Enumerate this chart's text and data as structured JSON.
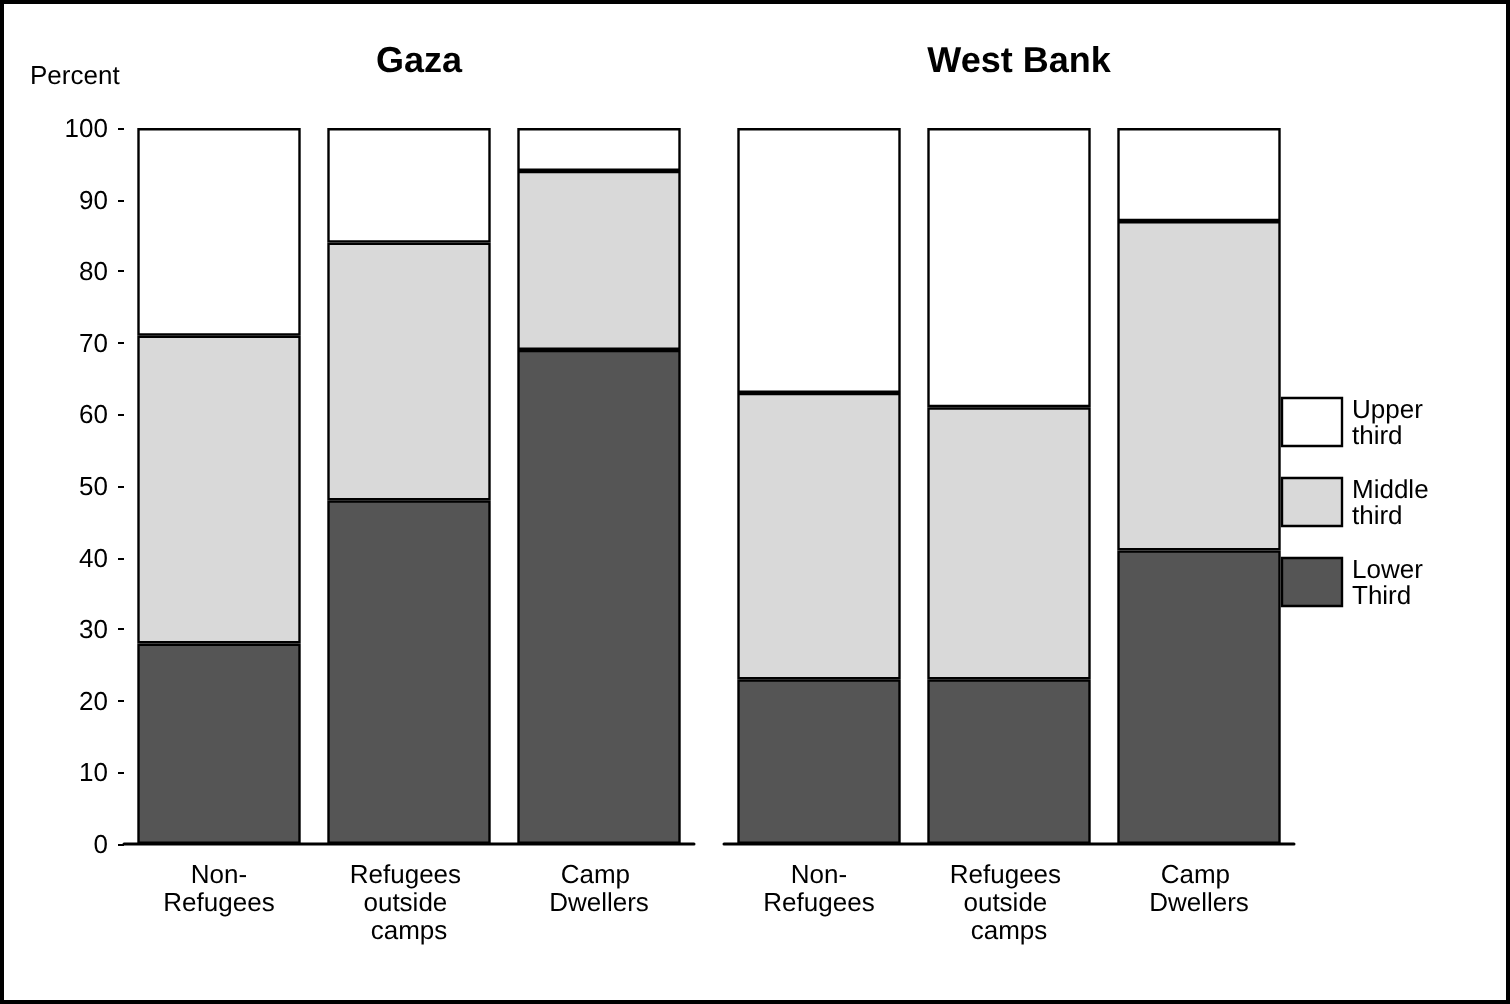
{
  "chart_data": [
    {
      "type": "bar",
      "title": "Gaza",
      "ylabel": "Percent",
      "categories": [
        "Non-Refugees",
        "Refugees outside camps",
        "Camp Dwellers"
      ],
      "stacked": true,
      "ylim": [
        0,
        100
      ],
      "yticks": [
        0,
        10,
        20,
        30,
        40,
        50,
        60,
        70,
        80,
        90,
        100
      ],
      "grid": false,
      "legend": "right",
      "series": [
        {
          "name": "Lower Third",
          "color": "#555555",
          "values": [
            28,
            48,
            69
          ]
        },
        {
          "name": "Middle third",
          "color": "#d9d9d9",
          "values": [
            43,
            36,
            25
          ]
        },
        {
          "name": "Upper third",
          "color": "#ffffff",
          "values": [
            29,
            16,
            6
          ]
        }
      ]
    },
    {
      "type": "bar",
      "title": "West Bank",
      "categories": [
        "Non-Refugees",
        "Refugees outside camps",
        "Camp Dwellers"
      ],
      "stacked": true,
      "ylim": [
        0,
        100
      ],
      "yticks": [
        0,
        10,
        20,
        30,
        40,
        50,
        60,
        70,
        80,
        90,
        100
      ],
      "tick_labels": "x",
      "grid": false,
      "legend": "right",
      "series": [
        {
          "name": "Lower Third",
          "color": "#555555",
          "values": [
            23,
            23,
            41
          ]
        },
        {
          "name": "Middle third",
          "color": "#d9d9d9",
          "values": [
            40,
            38,
            46
          ]
        },
        {
          "name": "Upper third",
          "color": "#ffffff",
          "values": [
            37,
            39,
            13
          ]
        }
      ]
    }
  ]
}
